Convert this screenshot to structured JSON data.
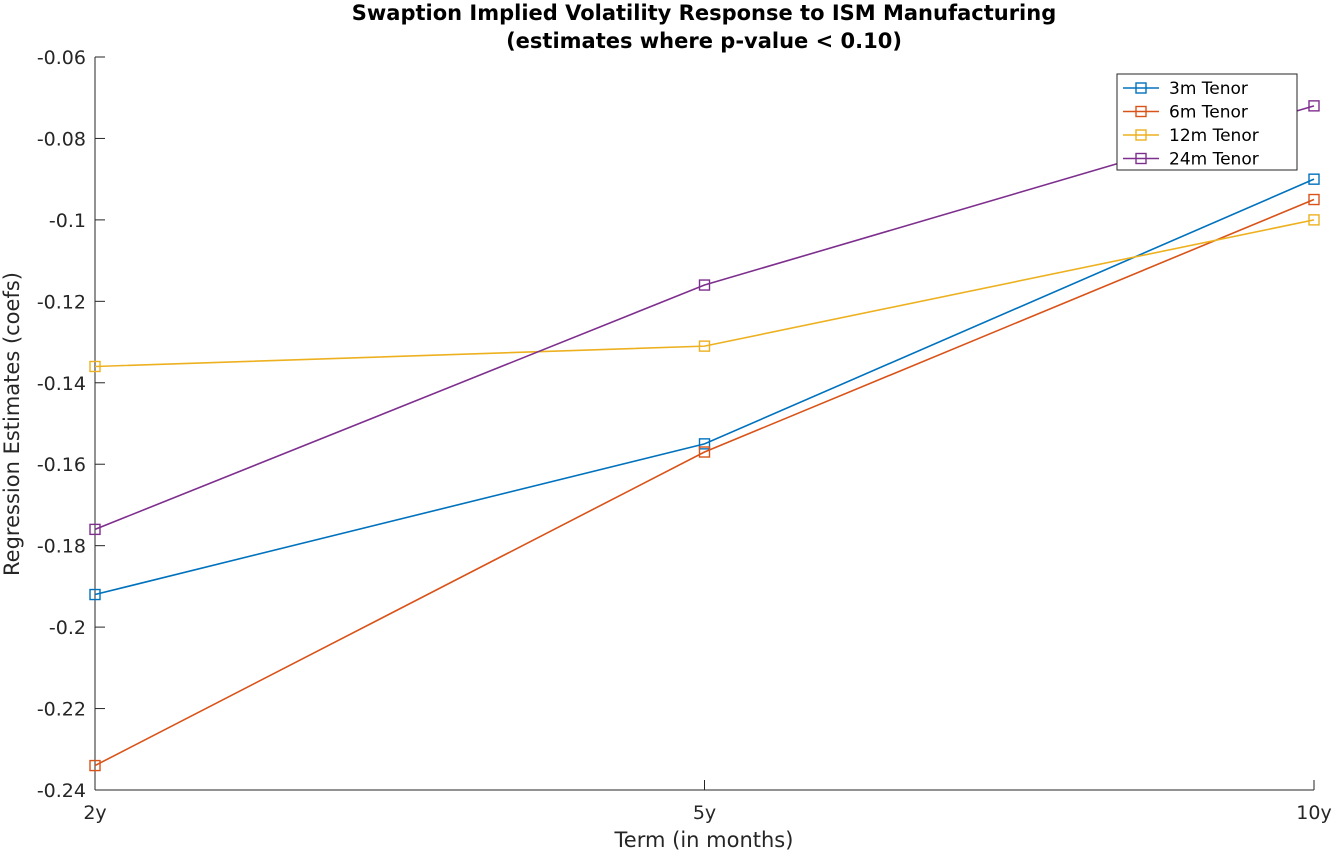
{
  "chart_data": {
    "type": "line",
    "title": "Swaption Implied Volatility Response to ISM Manufacturing",
    "subtitle": "(estimates where p-value < 0.10)",
    "xlabel": "Term (in months)",
    "ylabel": "Regression Estimates (coefs)",
    "categories": [
      "2y",
      "5y",
      "10y"
    ],
    "ylim": [
      -0.24,
      -0.06
    ],
    "yticks": [
      -0.06,
      -0.08,
      -0.1,
      -0.12,
      -0.14,
      -0.16,
      -0.18,
      -0.2,
      -0.22,
      -0.24
    ],
    "ytick_labels": [
      "-0.06",
      "-0.08",
      "-0.1",
      "-0.12",
      "-0.14",
      "-0.16",
      "-0.18",
      "-0.2",
      "-0.22",
      "-0.24"
    ],
    "grid": false,
    "legend_position": "top-right",
    "marker": "square",
    "series": [
      {
        "name": "3m Tenor",
        "color": "#0072BD",
        "values": [
          -0.192,
          -0.155,
          -0.09
        ]
      },
      {
        "name": "6m Tenor",
        "color": "#D95319",
        "values": [
          -0.234,
          -0.157,
          -0.095
        ]
      },
      {
        "name": "12m Tenor",
        "color": "#EDB120",
        "values": [
          -0.136,
          -0.131,
          -0.1
        ]
      },
      {
        "name": "24m Tenor",
        "color": "#7E2F8E",
        "values": [
          -0.176,
          -0.116,
          -0.072
        ]
      }
    ]
  }
}
